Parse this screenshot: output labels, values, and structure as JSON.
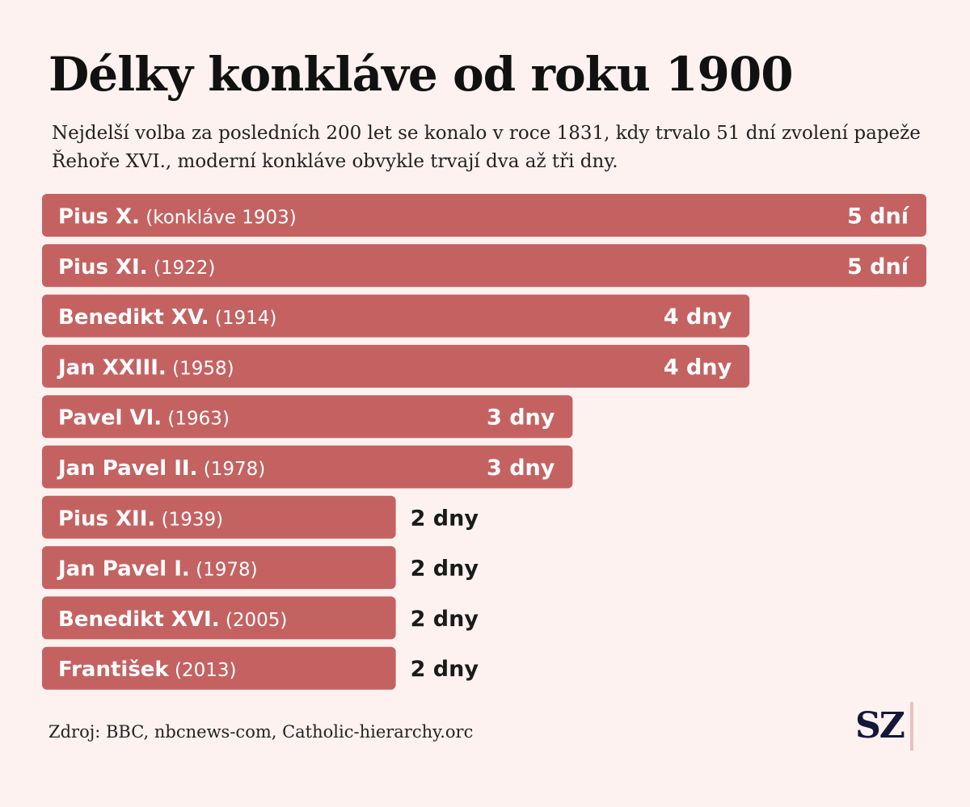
{
  "header": {
    "title": "Délky konkláve od roku 1900",
    "subtitle": "Nejdelší volba za posledních 200 let se konalo v roce 1831, kdy trvalo 51 dní zvolení papeže Řehoře XVI., moderní konkláve obvykle trvají dva až tři dny."
  },
  "footer": {
    "source": "Zdroj: BBC, nbcnews-com, Catholic-hierarchy.orc",
    "logo": "SZ"
  },
  "colors": {
    "bar": "#c46262",
    "background": "#fdf2f0",
    "label_inside": "#ffffff",
    "label_outside": "#1a1a1a"
  },
  "chart_data": {
    "type": "bar",
    "orientation": "horizontal",
    "categories": [
      "Pius X.",
      "Pius XI.",
      "Benedikt XV.",
      "Jan XXIII.",
      "Pavel VI.",
      "Jan Pavel II.",
      "Pius XII.",
      "Jan Pavel I.",
      "Benedikt XVI.",
      "František"
    ],
    "years": [
      "(konkláve 1903)",
      "(1922)",
      "(1914)",
      "(1958)",
      "(1963)",
      "(1978)",
      "(1939)",
      "(1978)",
      "(2005)",
      "(2013)"
    ],
    "values": [
      5,
      5,
      4,
      4,
      3,
      3,
      2,
      2,
      2,
      2
    ],
    "value_labels": [
      "5 dní",
      "5 dní",
      "4 dny",
      "4 dny",
      "3 dny",
      "3 dny",
      "2 dny",
      "2 dny",
      "2 dny",
      "2 dny"
    ],
    "xlim": [
      0,
      5
    ],
    "grid": false
  }
}
